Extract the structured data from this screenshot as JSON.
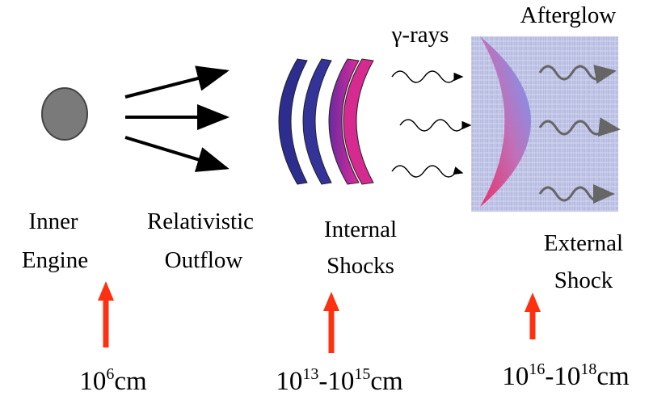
{
  "labels": {
    "gamma_rays": "γ-rays",
    "afterglow": "Afterglow",
    "inner_engine": [
      "Inner",
      "Engine"
    ],
    "outflow": [
      "Relativistic",
      "Outflow"
    ],
    "internal_shocks": [
      "Internal",
      "Shocks"
    ],
    "external_shock": [
      "External",
      "Shock"
    ]
  },
  "scales": {
    "inner": [
      "10",
      "6",
      "cm"
    ],
    "internal": [
      "10",
      "13",
      "-10",
      "15",
      "cm"
    ],
    "external": [
      "10",
      "16",
      "-10",
      "18",
      "cm"
    ]
  }
}
